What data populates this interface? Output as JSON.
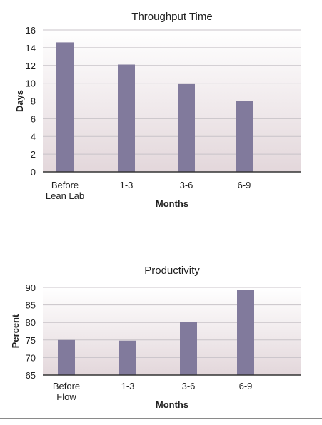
{
  "chart_data": [
    {
      "type": "bar",
      "title": "Throughput Time",
      "xlabel": "Months",
      "ylabel": "Days",
      "categories": [
        [
          "Before",
          "Lean Lab"
        ],
        [
          "1-3"
        ],
        [
          "3-6"
        ],
        [
          "6-9"
        ]
      ],
      "values": [
        14.6,
        12.1,
        9.9,
        8.0
      ],
      "ylim": [
        0,
        16
      ],
      "yticks": [
        "0",
        "2",
        "4",
        "6",
        "8",
        "10",
        "12",
        "14",
        "16"
      ],
      "grid": true,
      "bar_color": "#817a9c"
    },
    {
      "type": "bar",
      "title": "Productivity",
      "xlabel": "Months",
      "ylabel": "Percent",
      "categories": [
        [
          "Before",
          "Flow"
        ],
        [
          "1-3"
        ],
        [
          "3-6"
        ],
        [
          "6-9"
        ]
      ],
      "values": [
        75.0,
        74.8,
        80.1,
        89.2
      ],
      "ylim": [
        65,
        90
      ],
      "yticks": [
        "65",
        "70",
        "75",
        "80",
        "85",
        "90"
      ],
      "grid": true,
      "bar_color": "#817a9c"
    }
  ]
}
